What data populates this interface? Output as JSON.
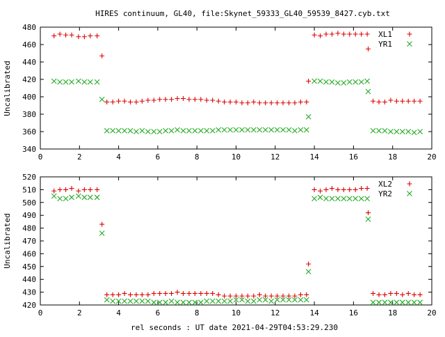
{
  "title": "HIRES continuum, GL40, file:Skynet_59333_GL40_59539_8427.cyb.txt",
  "xlabel": "rel seconds : UT date 2021-04-29T04:53:29.230",
  "colors": {
    "xl": "#dd0000",
    "yr": "#22aa22",
    "axis": "#000000",
    "background": "#ffffff"
  },
  "chart_data": [
    {
      "type": "scatter",
      "ylabel": "Uncalibrated",
      "xlim": [
        0,
        20
      ],
      "ylim": [
        340,
        480
      ],
      "xticks": [
        0,
        2,
        4,
        6,
        8,
        10,
        12,
        14,
        16,
        18,
        20
      ],
      "yticks": [
        340,
        360,
        380,
        400,
        420,
        440,
        460,
        480
      ],
      "grid": false,
      "legend": "top-right",
      "series": [
        {
          "name": "XL1",
          "marker": "plus",
          "color": "#dd0000",
          "points": [
            [
              0.7,
              470
            ],
            [
              1.0,
              472
            ],
            [
              1.3,
              471
            ],
            [
              1.6,
              471
            ],
            [
              1.95,
              469
            ],
            [
              2.25,
              469
            ],
            [
              2.55,
              470
            ],
            [
              2.9,
              470
            ],
            [
              3.15,
              447
            ],
            [
              3.4,
              394
            ],
            [
              3.7,
              394
            ],
            [
              4.0,
              395
            ],
            [
              4.3,
              395
            ],
            [
              4.6,
              394
            ],
            [
              4.9,
              394
            ],
            [
              5.2,
              395
            ],
            [
              5.5,
              396
            ],
            [
              5.8,
              396
            ],
            [
              6.1,
              397
            ],
            [
              6.4,
              397
            ],
            [
              6.7,
              397
            ],
            [
              7.0,
              398
            ],
            [
              7.3,
              398
            ],
            [
              7.6,
              397
            ],
            [
              7.9,
              397
            ],
            [
              8.2,
              397
            ],
            [
              8.5,
              396
            ],
            [
              8.8,
              396
            ],
            [
              9.1,
              395
            ],
            [
              9.4,
              394
            ],
            [
              9.7,
              394
            ],
            [
              10.0,
              394
            ],
            [
              10.3,
              393
            ],
            [
              10.6,
              393
            ],
            [
              10.9,
              394
            ],
            [
              11.2,
              393
            ],
            [
              11.5,
              393
            ],
            [
              11.8,
              393
            ],
            [
              12.1,
              393
            ],
            [
              12.4,
              393
            ],
            [
              12.7,
              393
            ],
            [
              13.0,
              393
            ],
            [
              13.3,
              394
            ],
            [
              13.6,
              394
            ],
            [
              13.7,
              418
            ],
            [
              14.0,
              471
            ],
            [
              14.3,
              470
            ],
            [
              14.6,
              472
            ],
            [
              14.9,
              472
            ],
            [
              15.2,
              473
            ],
            [
              15.5,
              472
            ],
            [
              15.8,
              472
            ],
            [
              16.1,
              472
            ],
            [
              16.4,
              472
            ],
            [
              16.7,
              472
            ],
            [
              16.75,
              455
            ],
            [
              17.0,
              395
            ],
            [
              17.3,
              394
            ],
            [
              17.6,
              394
            ],
            [
              17.9,
              396
            ],
            [
              18.2,
              395
            ],
            [
              18.5,
              395
            ],
            [
              18.8,
              395
            ],
            [
              19.1,
              395
            ],
            [
              19.4,
              395
            ]
          ]
        },
        {
          "name": "YR1",
          "marker": "cross",
          "color": "#22aa22",
          "points": [
            [
              0.7,
              418
            ],
            [
              1.0,
              417
            ],
            [
              1.3,
              417
            ],
            [
              1.6,
              417
            ],
            [
              1.95,
              418
            ],
            [
              2.25,
              417
            ],
            [
              2.55,
              417
            ],
            [
              2.9,
              417
            ],
            [
              3.15,
              397
            ],
            [
              3.4,
              361
            ],
            [
              3.7,
              361
            ],
            [
              4.0,
              361
            ],
            [
              4.3,
              361
            ],
            [
              4.6,
              361
            ],
            [
              4.9,
              360
            ],
            [
              5.2,
              361
            ],
            [
              5.5,
              360
            ],
            [
              5.8,
              360
            ],
            [
              6.1,
              360
            ],
            [
              6.4,
              361
            ],
            [
              6.7,
              361
            ],
            [
              7.0,
              362
            ],
            [
              7.3,
              361
            ],
            [
              7.6,
              361
            ],
            [
              7.9,
              361
            ],
            [
              8.2,
              361
            ],
            [
              8.5,
              361
            ],
            [
              8.8,
              361
            ],
            [
              9.1,
              362
            ],
            [
              9.4,
              362
            ],
            [
              9.7,
              362
            ],
            [
              10.0,
              362
            ],
            [
              10.3,
              362
            ],
            [
              10.6,
              362
            ],
            [
              10.9,
              362
            ],
            [
              11.2,
              362
            ],
            [
              11.5,
              362
            ],
            [
              11.8,
              362
            ],
            [
              12.1,
              362
            ],
            [
              12.4,
              362
            ],
            [
              12.7,
              362
            ],
            [
              13.0,
              361
            ],
            [
              13.3,
              362
            ],
            [
              13.6,
              362
            ],
            [
              13.7,
              377
            ],
            [
              14.0,
              418
            ],
            [
              14.3,
              418
            ],
            [
              14.6,
              417
            ],
            [
              14.9,
              417
            ],
            [
              15.2,
              416
            ],
            [
              15.5,
              416
            ],
            [
              15.8,
              417
            ],
            [
              16.1,
              417
            ],
            [
              16.4,
              417
            ],
            [
              16.7,
              418
            ],
            [
              16.75,
              406
            ],
            [
              17.0,
              361
            ],
            [
              17.3,
              361
            ],
            [
              17.6,
              361
            ],
            [
              17.9,
              360
            ],
            [
              18.2,
              360
            ],
            [
              18.5,
              360
            ],
            [
              18.8,
              360
            ],
            [
              19.1,
              359
            ],
            [
              19.4,
              360
            ]
          ]
        }
      ]
    },
    {
      "type": "scatter",
      "ylabel": "Uncalibrated",
      "xlim": [
        0,
        20
      ],
      "ylim": [
        420,
        520
      ],
      "xticks": [
        0,
        2,
        4,
        6,
        8,
        10,
        12,
        14,
        16,
        18,
        20
      ],
      "yticks": [
        420,
        430,
        440,
        450,
        460,
        470,
        480,
        490,
        500,
        510,
        520
      ],
      "grid": false,
      "legend": "top-right",
      "series": [
        {
          "name": "XL2",
          "marker": "plus",
          "color": "#dd0000",
          "points": [
            [
              0.7,
              509
            ],
            [
              1.0,
              510
            ],
            [
              1.3,
              510
            ],
            [
              1.6,
              511
            ],
            [
              1.95,
              509
            ],
            [
              2.25,
              510
            ],
            [
              2.55,
              510
            ],
            [
              2.9,
              510
            ],
            [
              3.15,
              483
            ],
            [
              3.4,
              428
            ],
            [
              3.7,
              428
            ],
            [
              4.0,
              428
            ],
            [
              4.3,
              429
            ],
            [
              4.6,
              428
            ],
            [
              4.9,
              428
            ],
            [
              5.2,
              428
            ],
            [
              5.5,
              428
            ],
            [
              5.8,
              429
            ],
            [
              6.1,
              429
            ],
            [
              6.4,
              429
            ],
            [
              6.7,
              429
            ],
            [
              7.0,
              430
            ],
            [
              7.3,
              429
            ],
            [
              7.6,
              429
            ],
            [
              7.9,
              429
            ],
            [
              8.2,
              429
            ],
            [
              8.5,
              429
            ],
            [
              8.8,
              429
            ],
            [
              9.1,
              428
            ],
            [
              9.4,
              427
            ],
            [
              9.7,
              427
            ],
            [
              10.0,
              427
            ],
            [
              10.3,
              427
            ],
            [
              10.6,
              427
            ],
            [
              10.9,
              427
            ],
            [
              11.2,
              428
            ],
            [
              11.5,
              427
            ],
            [
              11.8,
              427
            ],
            [
              12.1,
              427
            ],
            [
              12.4,
              427
            ],
            [
              12.7,
              427
            ],
            [
              13.0,
              427
            ],
            [
              13.3,
              428
            ],
            [
              13.6,
              428
            ],
            [
              13.7,
              452
            ],
            [
              14.0,
              510
            ],
            [
              14.3,
              509
            ],
            [
              14.6,
              510
            ],
            [
              14.9,
              511
            ],
            [
              15.2,
              510
            ],
            [
              15.5,
              510
            ],
            [
              15.8,
              510
            ],
            [
              16.1,
              510
            ],
            [
              16.4,
              511
            ],
            [
              16.7,
              511
            ],
            [
              16.75,
              492
            ],
            [
              17.0,
              429
            ],
            [
              17.3,
              428
            ],
            [
              17.6,
              428
            ],
            [
              17.9,
              429
            ],
            [
              18.2,
              429
            ],
            [
              18.5,
              428
            ],
            [
              18.8,
              429
            ],
            [
              19.1,
              428
            ],
            [
              19.4,
              428
            ]
          ]
        },
        {
          "name": "YR2",
          "marker": "cross",
          "color": "#22aa22",
          "points": [
            [
              0.7,
              505
            ],
            [
              1.0,
              503
            ],
            [
              1.3,
              503
            ],
            [
              1.6,
              504
            ],
            [
              1.95,
              505
            ],
            [
              2.25,
              504
            ],
            [
              2.55,
              504
            ],
            [
              2.9,
              504
            ],
            [
              3.15,
              476
            ],
            [
              3.4,
              424
            ],
            [
              3.7,
              423
            ],
            [
              4.0,
              423
            ],
            [
              4.3,
              423
            ],
            [
              4.6,
              423
            ],
            [
              4.9,
              423
            ],
            [
              5.2,
              423
            ],
            [
              5.5,
              423
            ],
            [
              5.8,
              422
            ],
            [
              6.1,
              422
            ],
            [
              6.4,
              422
            ],
            [
              6.7,
              423
            ],
            [
              7.0,
              422
            ],
            [
              7.3,
              422
            ],
            [
              7.6,
              422
            ],
            [
              7.9,
              422
            ],
            [
              8.2,
              422
            ],
            [
              8.5,
              423
            ],
            [
              8.8,
              423
            ],
            [
              9.1,
              423
            ],
            [
              9.4,
              423
            ],
            [
              9.7,
              423
            ],
            [
              10.0,
              424
            ],
            [
              10.3,
              424
            ],
            [
              10.6,
              423
            ],
            [
              10.9,
              423
            ],
            [
              11.2,
              424
            ],
            [
              11.5,
              424
            ],
            [
              11.8,
              423
            ],
            [
              12.1,
              424
            ],
            [
              12.4,
              424
            ],
            [
              12.7,
              424
            ],
            [
              13.0,
              424
            ],
            [
              13.3,
              424
            ],
            [
              13.6,
              424
            ],
            [
              13.7,
              446
            ],
            [
              14.0,
              503
            ],
            [
              14.3,
              504
            ],
            [
              14.6,
              503
            ],
            [
              14.9,
              503
            ],
            [
              15.2,
              503
            ],
            [
              15.5,
              503
            ],
            [
              15.8,
              503
            ],
            [
              16.1,
              503
            ],
            [
              16.4,
              503
            ],
            [
              16.7,
              503
            ],
            [
              16.75,
              487
            ],
            [
              17.0,
              422
            ],
            [
              17.3,
              422
            ],
            [
              17.6,
              422
            ],
            [
              17.9,
              422
            ],
            [
              18.2,
              422
            ],
            [
              18.5,
              422
            ],
            [
              18.8,
              422
            ],
            [
              19.1,
              422
            ],
            [
              19.4,
              422
            ]
          ]
        }
      ]
    }
  ]
}
